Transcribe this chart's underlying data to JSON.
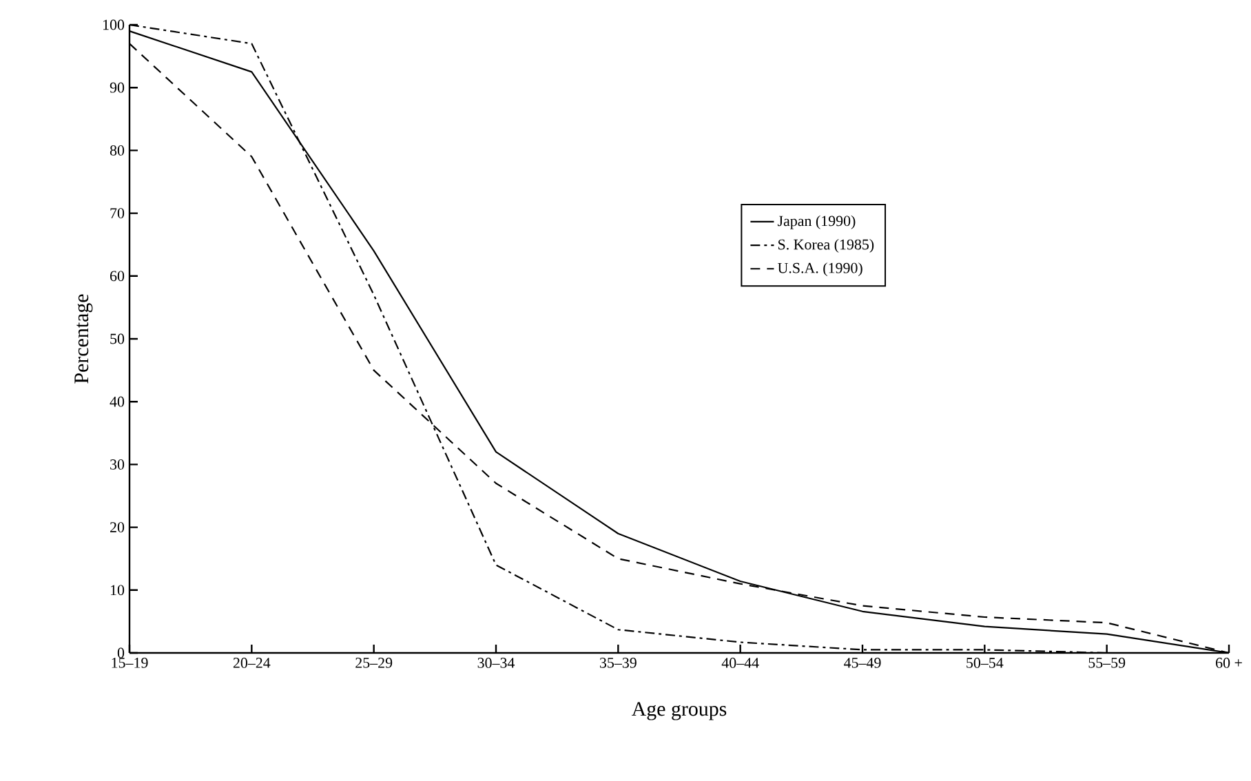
{
  "chart_data": {
    "type": "line",
    "xlabel": "Age groups",
    "ylabel": "Percentage",
    "categories": [
      "15–19",
      "20–24",
      "25–29",
      "30–34",
      "35–39",
      "40–44",
      "45–49",
      "50–54",
      "55–59",
      "60 +"
    ],
    "ylim": [
      0,
      100
    ],
    "yticks": [
      0,
      10,
      20,
      30,
      40,
      50,
      60,
      70,
      80,
      90,
      100
    ],
    "grid": false,
    "legend": "center",
    "marker": "none",
    "series": [
      {
        "name": "Japan (1990)",
        "color": "#000000",
        "line_style": "solid",
        "values": [
          99,
          92.5,
          64,
          32,
          19,
          11.4,
          6.6,
          4.2,
          3,
          0
        ]
      },
      {
        "name": "S. Korea (1985)",
        "color": "#000000",
        "line_style": "dashdot",
        "values": [
          100,
          97,
          57,
          14,
          3.7,
          1.7,
          0.5,
          0.5,
          0,
          0
        ]
      },
      {
        "name": "U.S.A. (1990)",
        "color": "#000000",
        "line_style": "dashed",
        "values": [
          97,
          79,
          45,
          27,
          15,
          11,
          7.5,
          5.7,
          4.8,
          0
        ]
      }
    ]
  }
}
